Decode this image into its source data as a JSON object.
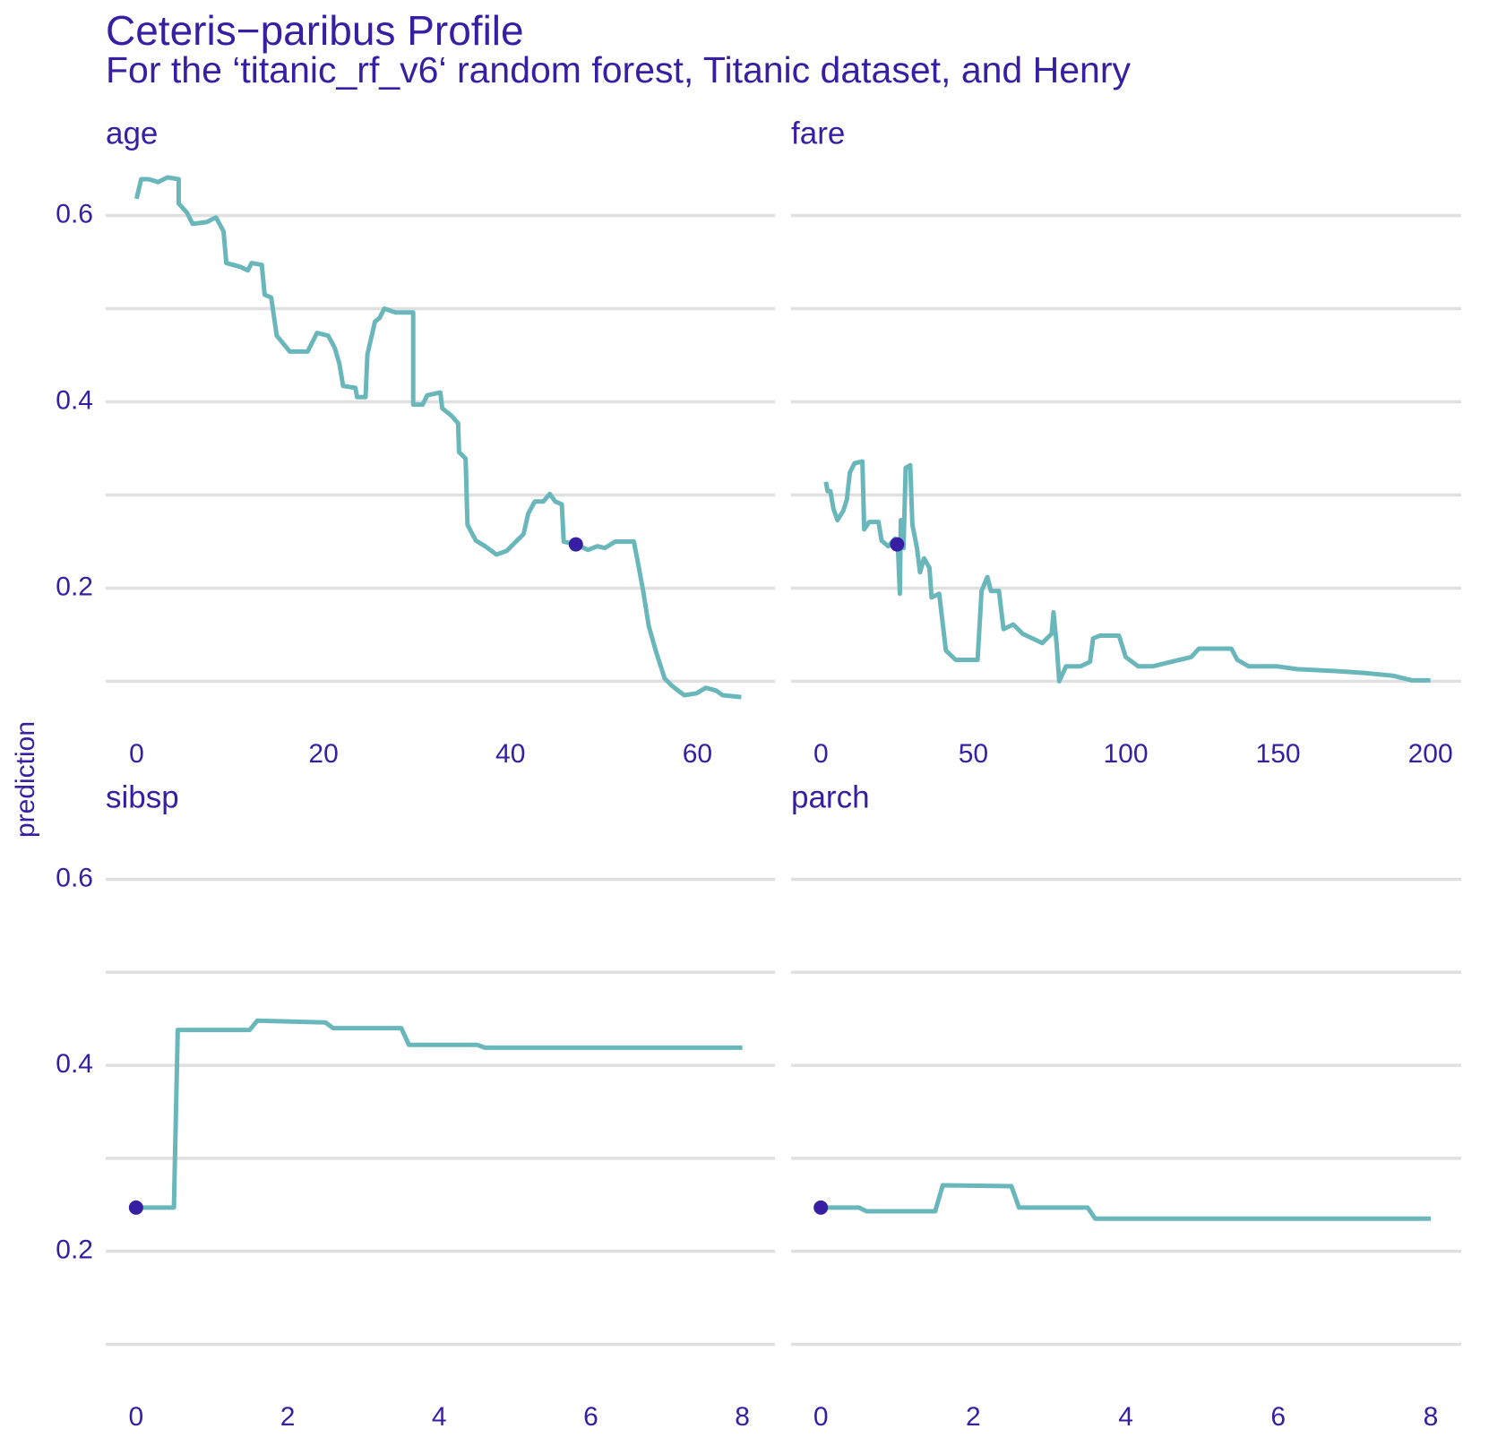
{
  "title": "Ceteris−paribus Profile",
  "subtitle": "For the ‘titanic_rf_v6‘ random forest, Titanic dataset, and Henry",
  "y_axis_label": "prediction",
  "chart_data": [
    {
      "type": "line",
      "title": "age",
      "color": "#6ab7bb",
      "x": [
        0,
        0.5,
        1.3,
        2.3,
        3.3,
        4.5,
        4.5,
        5.4,
        6.0,
        7.5,
        8.5,
        9.3,
        9.6,
        11.1,
        11.9,
        12.3,
        13.4,
        13.7,
        14.4,
        15.0,
        16.4,
        18.3,
        19.3,
        20.5,
        21.2,
        21.7,
        22.1,
        23.4,
        23.6,
        24.5,
        24.7,
        25.5,
        26.0,
        26.5,
        27.7,
        29.6,
        29.6,
        30.6,
        31.1,
        32.5,
        32.7,
        33.7,
        34.4,
        34.5,
        35.2,
        35.4,
        36.3,
        37.3,
        38.5,
        39.6,
        40.4,
        41.4,
        41.9,
        42.6,
        43.5,
        44.2,
        44.8,
        45.5,
        45.7,
        47.0,
        48.3,
        49.3,
        50.1,
        51.2,
        53.2,
        53.7,
        54.2,
        54.8,
        55.6,
        56.5,
        57.3,
        58.6,
        59.9,
        60.9,
        62.0,
        62.7,
        64.7
      ],
      "values": [
        0.618,
        0.639,
        0.639,
        0.636,
        0.641,
        0.639,
        0.613,
        0.603,
        0.591,
        0.593,
        0.598,
        0.583,
        0.549,
        0.545,
        0.541,
        0.549,
        0.547,
        0.515,
        0.512,
        0.471,
        0.454,
        0.454,
        0.474,
        0.471,
        0.458,
        0.441,
        0.417,
        0.415,
        0.405,
        0.405,
        0.451,
        0.486,
        0.49,
        0.5,
        0.496,
        0.496,
        0.397,
        0.397,
        0.407,
        0.41,
        0.393,
        0.385,
        0.377,
        0.346,
        0.339,
        0.268,
        0.251,
        0.245,
        0.236,
        0.24,
        0.248,
        0.258,
        0.28,
        0.293,
        0.293,
        0.301,
        0.293,
        0.29,
        0.25,
        0.247,
        0.241,
        0.245,
        0.243,
        0.25,
        0.25,
        0.224,
        0.197,
        0.159,
        0.131,
        0.103,
        0.095,
        0.085,
        0.087,
        0.093,
        0.09,
        0.085,
        0.083
      ],
      "points": {
        "color": "#371ea3",
        "x": [
          47
        ],
        "values": [
          0.247
        ]
      },
      "xlim": [
        -3.3,
        68.3
      ],
      "xticks": [
        0,
        20,
        40,
        60
      ],
      "ylim": [
        0.06,
        0.665
      ],
      "yticks": [
        0.2,
        0.4,
        0.6
      ],
      "ygrid": [
        0.1,
        0.2,
        0.3,
        0.4,
        0.5,
        0.6
      ]
    },
    {
      "type": "line",
      "title": "fare",
      "color": "#6ab7bb",
      "x": [
        1.6,
        2.2,
        3.1,
        4.1,
        5.4,
        7.3,
        8.5,
        9.5,
        11.0,
        13.6,
        14.2,
        15.8,
        18.9,
        19.9,
        22.1,
        24.3,
        25.2,
        25.9,
        26.2,
        27.1,
        27.8,
        29.3,
        30.0,
        31.5,
        32.5,
        33.8,
        35.6,
        36.3,
        38.8,
        41.0,
        44.2,
        51.4,
        52.7,
        54.6,
        55.8,
        58.4,
        59.9,
        63.1,
        66.2,
        72.6,
        75.7,
        76.3,
        77.3,
        78.2,
        80.4,
        85.2,
        88.3,
        89.3,
        91.5,
        97.8,
        100.0,
        104.1,
        108.8,
        115.1,
        121.5,
        124.0,
        134.7,
        136.6,
        140.4,
        149.8,
        156.2,
        168.8,
        178.2,
        187.7,
        194.0,
        200
      ],
      "values": [
        0.314,
        0.304,
        0.304,
        0.285,
        0.273,
        0.283,
        0.295,
        0.324,
        0.334,
        0.336,
        0.263,
        0.271,
        0.271,
        0.251,
        0.245,
        0.253,
        0.248,
        0.194,
        0.273,
        0.243,
        0.329,
        0.332,
        0.268,
        0.243,
        0.217,
        0.232,
        0.222,
        0.19,
        0.194,
        0.133,
        0.123,
        0.123,
        0.197,
        0.212,
        0.197,
        0.197,
        0.156,
        0.161,
        0.151,
        0.141,
        0.151,
        0.174,
        0.141,
        0.1,
        0.116,
        0.116,
        0.121,
        0.146,
        0.149,
        0.149,
        0.126,
        0.116,
        0.116,
        0.121,
        0.126,
        0.135,
        0.135,
        0.123,
        0.116,
        0.116,
        0.113,
        0.111,
        0.109,
        0.106,
        0.101,
        0.101
      ],
      "points": {
        "color": "#371ea3",
        "x": [
          25
        ],
        "values": [
          0.247
        ]
      },
      "xlim": [
        -9.8,
        210.1
      ],
      "xticks": [
        0,
        50,
        100,
        150,
        200
      ],
      "ylim": [
        0.06,
        0.665
      ],
      "ygrid": [
        0.1,
        0.2,
        0.3,
        0.4,
        0.5,
        0.6
      ]
    },
    {
      "type": "line",
      "title": "sibsp",
      "color": "#6ab7bb",
      "x": [
        0,
        0.5,
        0.55,
        1.5,
        1.6,
        2.5,
        2.6,
        3.5,
        3.6,
        4.5,
        4.6,
        8
      ],
      "values": [
        0.247,
        0.247,
        0.438,
        0.438,
        0.448,
        0.446,
        0.44,
        0.44,
        0.422,
        0.422,
        0.419,
        0.419
      ],
      "points": {
        "color": "#371ea3",
        "x": [
          0
        ],
        "values": [
          0.247
        ]
      },
      "xlim": [
        -0.4,
        8.43
      ],
      "xticks": [
        0,
        2,
        4,
        6,
        8
      ],
      "ylim": [
        0.06,
        0.665
      ],
      "yticks": [
        0.2,
        0.4,
        0.6
      ],
      "ygrid": [
        0.1,
        0.2,
        0.3,
        0.4,
        0.5,
        0.6
      ]
    },
    {
      "type": "line",
      "title": "parch",
      "color": "#6ab7bb",
      "x": [
        0,
        0.5,
        0.6,
        1.5,
        1.6,
        2.5,
        2.6,
        3.5,
        3.6,
        8
      ],
      "values": [
        0.247,
        0.247,
        0.243,
        0.243,
        0.271,
        0.27,
        0.247,
        0.247,
        0.235,
        0.235
      ],
      "points": {
        "color": "#371ea3",
        "x": [
          0
        ],
        "values": [
          0.247
        ]
      },
      "xlim": [
        -0.39,
        8.4
      ],
      "xticks": [
        0,
        2,
        4,
        6,
        8
      ],
      "ylim": [
        0.06,
        0.665
      ],
      "ygrid": [
        0.1,
        0.2,
        0.3,
        0.4,
        0.5,
        0.6
      ]
    }
  ]
}
